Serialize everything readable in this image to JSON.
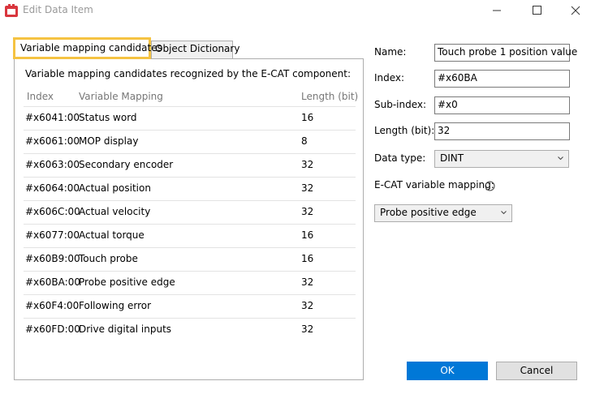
{
  "window": {
    "title": "Edit Data Item"
  },
  "tabs": [
    "Variable mapping candidates",
    "Object Dictionary"
  ],
  "panel": {
    "description": "Variable mapping candidates recognized by the E-CAT component:",
    "columns": [
      "Index",
      "Variable Mapping",
      "Length (bit)"
    ],
    "rows": [
      [
        "#x6041:00",
        "Status word",
        "16"
      ],
      [
        "#x6061:00",
        "MOP display",
        "8"
      ],
      [
        "#x6063:00",
        "Secondary encoder",
        "32"
      ],
      [
        "#x6064:00",
        "Actual position",
        "32"
      ],
      [
        "#x606C:00",
        "Actual velocity",
        "32"
      ],
      [
        "#x6077:00",
        "Actual torque",
        "16"
      ],
      [
        "#x60B9:00",
        "Touch probe",
        "16"
      ],
      [
        "#x60BA:00",
        "Probe positive edge",
        "32"
      ],
      [
        "#x60F4:00",
        "Following error",
        "32"
      ],
      [
        "#x60FD:00",
        "Drive digital inputs",
        "32"
      ]
    ]
  },
  "form": {
    "fields": [
      {
        "label": "Name:",
        "value": "Touch probe 1 position value"
      },
      {
        "label": "Index:",
        "value": "#x60BA"
      },
      {
        "label": "Sub-index:",
        "value": "#x0"
      },
      {
        "label": "Length (bit):",
        "value": "32"
      },
      {
        "label": "Data type:",
        "value": "DINT"
      }
    ],
    "mapping_label": "E-CAT variable mapping:",
    "mapping_value": "Probe positive edge"
  },
  "buttons": [
    "OK",
    "Cancel"
  ]
}
